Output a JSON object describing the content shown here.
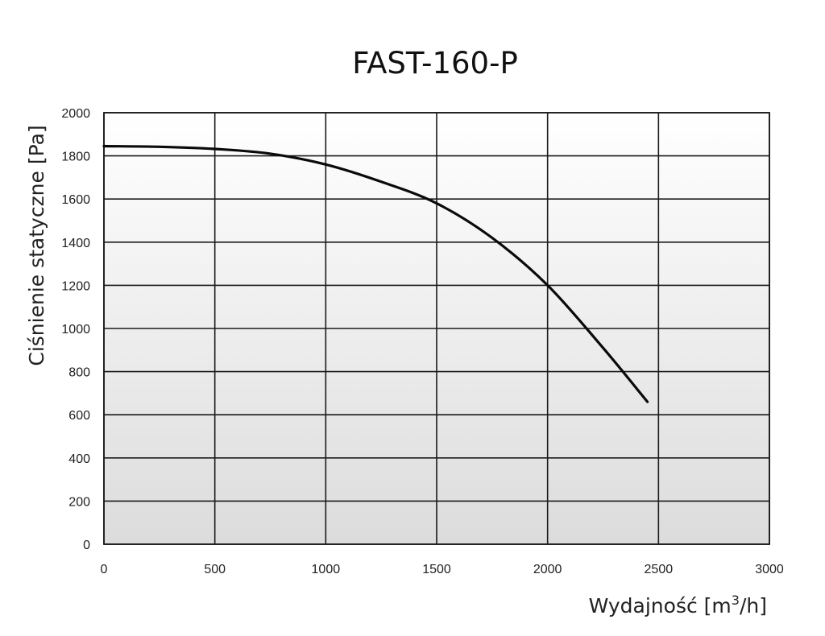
{
  "chart_data": {
    "type": "line",
    "title": "FAST-160-P",
    "xlabel": "Wydajność [m",
    "xlabel_sup": "3",
    "xlabel_suffix": "/h]",
    "ylabel": "Ciśnienie statyczne  [Pa]",
    "xlim": [
      0,
      3000
    ],
    "ylim": [
      0,
      2000
    ],
    "x_ticks": [
      0,
      500,
      1000,
      1500,
      2000,
      2500,
      3000
    ],
    "y_ticks": [
      0,
      200,
      400,
      600,
      800,
      1000,
      1200,
      1400,
      1600,
      1800,
      2000
    ],
    "grid": true,
    "series": [
      {
        "x": [
          0,
          250,
          500,
          750,
          1000,
          1250,
          1500,
          1750,
          2000,
          2250,
          2450
        ],
        "y": [
          1845,
          1842,
          1832,
          1810,
          1760,
          1680,
          1580,
          1420,
          1200,
          910,
          660
        ]
      }
    ]
  }
}
